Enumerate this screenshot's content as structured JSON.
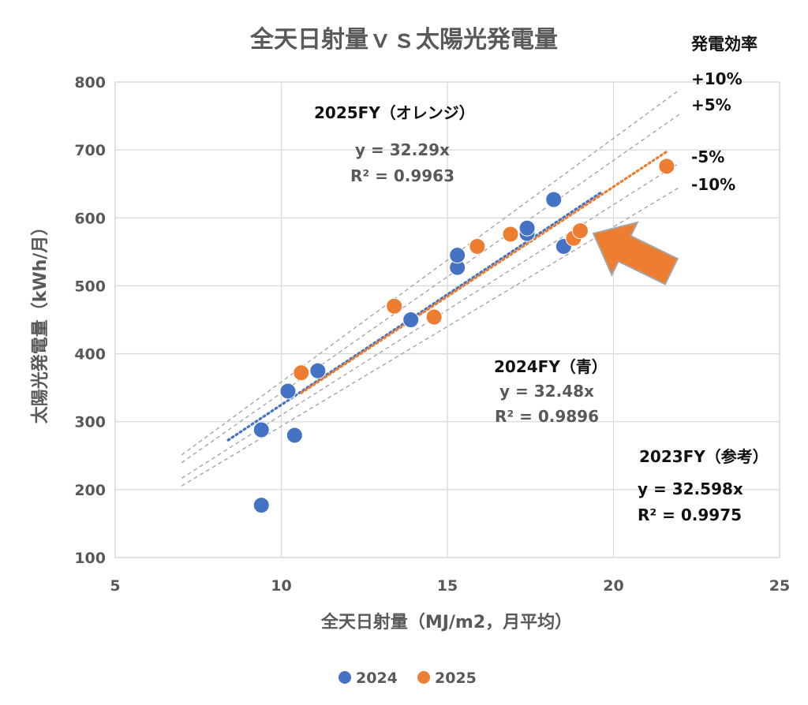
{
  "chart_data": {
    "type": "scatter",
    "title": "全天日射量ｖｓ太陽光発電量",
    "xlabel": "全天日射量（MJ/m2，月平均）",
    "ylabel": "太陽光発電量（kWh/月）",
    "xlim": [
      5,
      25
    ],
    "ylim": [
      100,
      800
    ],
    "xticks": [
      5,
      10,
      15,
      20,
      25
    ],
    "yticks": [
      100,
      200,
      300,
      400,
      500,
      600,
      700,
      800
    ],
    "grid": true,
    "legend_position": "bottom",
    "series": [
      {
        "name": "2024",
        "color": "#4472C4",
        "points": [
          [
            9.4,
            177
          ],
          [
            9.4,
            288
          ],
          [
            10.4,
            280
          ],
          [
            10.2,
            345
          ],
          [
            11.1,
            375
          ],
          [
            13.9,
            450
          ],
          [
            15.3,
            527
          ],
          [
            15.3,
            545
          ],
          [
            17.4,
            577
          ],
          [
            17.4,
            585
          ],
          [
            18.2,
            627
          ],
          [
            18.5,
            558
          ]
        ],
        "trend": {
          "slope": 32.48,
          "x_range": [
            8.4,
            19.6
          ]
        }
      },
      {
        "name": "2025",
        "color": "#ED7D31",
        "points": [
          [
            10.6,
            372
          ],
          [
            13.4,
            470
          ],
          [
            14.6,
            454
          ],
          [
            15.9,
            558
          ],
          [
            16.9,
            576
          ],
          [
            18.8,
            570
          ],
          [
            19.0,
            581
          ],
          [
            21.6,
            676
          ]
        ],
        "trend": {
          "slope": 32.29,
          "x_range": [
            10.6,
            21.6
          ]
        }
      }
    ],
    "reference_lines": {
      "base_slope": 32.598,
      "x_range": [
        7,
        22
      ],
      "factors": [
        1.1,
        1.05,
        0.95,
        0.9
      ],
      "color": "#A6A6A6"
    },
    "efficiency_header": "発電効率",
    "efficiency_labels": [
      "+10%",
      "+5%",
      "-5%",
      "-10%"
    ],
    "annotations": {
      "fy2025": {
        "title": "2025FY（オレンジ）",
        "equation": "y = 32.29x",
        "r2": "R² = 0.9963"
      },
      "fy2024": {
        "title": "2024FY（青）",
        "equation": "y = 32.48x",
        "r2": "R² = 0.9896"
      },
      "fy2023": {
        "title": "2023FY（参考）",
        "equation": "y = 32.598x",
        "r2": "R² = 0.9975"
      }
    },
    "arrow_color": "#ED7D31"
  }
}
